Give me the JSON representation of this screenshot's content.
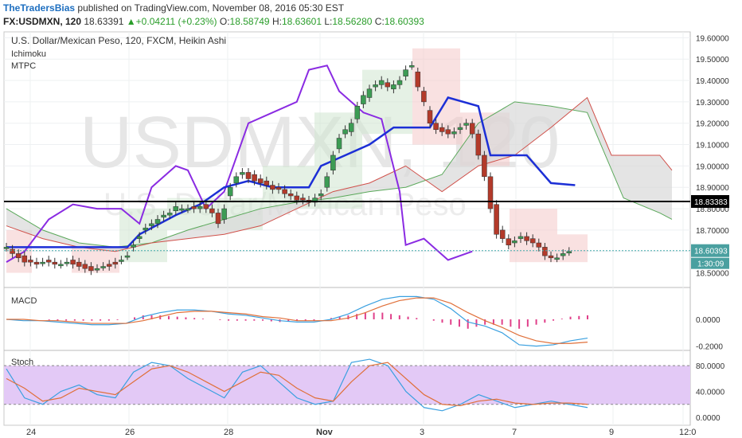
{
  "header": {
    "author": "TheTradersBias",
    "published_text": "published on TradingView.com, November 08, 2016 05:30 EST",
    "symbol": "FX:USDMXN, 120",
    "last": "18.63391",
    "change_arrow": "▲",
    "change": "+0.04211 (+0.23%)",
    "open_label": "O:",
    "open": "18.58749",
    "high_label": "H:",
    "high": "18.63601",
    "low_label": "L:",
    "low": "18.56280",
    "close_label": "C:",
    "close": "18.60393"
  },
  "legend": {
    "title": "U.S. Dollar/Mexican Peso, 120, FXCM, Heikin Ashi",
    "ind1": "Ichimoku",
    "ind2": "MTPC"
  },
  "watermark": {
    "big": "USDMXN, 120",
    "small": "U.S. Dollar/Mexican Peso"
  },
  "colors": {
    "up": "#3c9c54",
    "down": "#b33a2a",
    "cloud_green": "#5aa85a",
    "cloud_red": "#d0504a",
    "blue": "#1c2fd6",
    "purple": "#8a2be2",
    "macd": "#3aa0e0",
    "signal": "#e0703a",
    "hist": "#e0408a",
    "stoch_bg": "#e3c9f6"
  },
  "chart_data": [
    {
      "type": "candlestick",
      "title": "U.S. Dollar/Mexican Peso, 120, FXCM, Heikin Ashi",
      "x_ticks": [
        "24",
        "26",
        "28",
        "Nov",
        "3",
        "7",
        "9",
        "12:0"
      ],
      "ylim": [
        18.45,
        19.62
      ],
      "y_ticks": [
        "19.60000",
        "19.50000",
        "19.40000",
        "19.30000",
        "19.20000",
        "19.10000",
        "19.00000",
        "18.90000",
        "18.80000",
        "18.70000",
        "18.50000"
      ],
      "level_line": {
        "value": 18.83383,
        "label": "18.83383"
      },
      "last_price": {
        "value": 18.60393,
        "label": "18.60393"
      },
      "countdown": "1:30:09",
      "candles": [
        [
          18.62,
          18.62
        ],
        [
          18.61,
          18.59
        ],
        [
          18.59,
          18.57
        ],
        [
          18.58,
          18.55
        ],
        [
          18.56,
          18.55
        ],
        [
          18.55,
          18.54
        ],
        [
          18.55,
          18.55
        ],
        [
          18.56,
          18.55
        ],
        [
          18.55,
          18.54
        ],
        [
          18.54,
          18.54
        ],
        [
          18.55,
          18.55
        ],
        [
          18.56,
          18.54
        ],
        [
          18.55,
          18.53
        ],
        [
          18.54,
          18.52
        ],
        [
          18.53,
          18.51
        ],
        [
          18.52,
          18.52
        ],
        [
          18.53,
          18.53
        ],
        [
          18.54,
          18.53
        ],
        [
          18.55,
          18.54
        ],
        [
          18.56,
          18.56
        ],
        [
          18.58,
          18.58
        ],
        [
          18.62,
          18.63
        ],
        [
          18.66,
          18.67
        ],
        [
          18.7,
          18.71
        ],
        [
          18.72,
          18.73
        ],
        [
          18.73,
          18.75
        ],
        [
          18.76,
          18.77
        ],
        [
          18.77,
          18.78
        ],
        [
          18.79,
          18.81
        ],
        [
          18.8,
          18.8
        ],
        [
          18.8,
          18.8
        ],
        [
          18.81,
          18.8
        ],
        [
          18.8,
          18.81
        ],
        [
          18.82,
          18.8
        ],
        [
          18.8,
          18.78
        ],
        [
          18.78,
          18.73
        ],
        [
          18.75,
          18.8
        ],
        [
          18.86,
          18.9
        ],
        [
          18.92,
          18.95
        ],
        [
          18.96,
          18.97
        ],
        [
          18.97,
          18.94
        ],
        [
          18.96,
          18.93
        ],
        [
          18.94,
          18.92
        ],
        [
          18.93,
          18.91
        ],
        [
          18.91,
          18.89
        ],
        [
          18.9,
          18.89
        ],
        [
          18.89,
          18.87
        ],
        [
          18.87,
          18.86
        ],
        [
          18.86,
          18.84
        ],
        [
          18.85,
          18.84
        ],
        [
          18.84,
          18.83
        ],
        [
          18.83,
          18.85
        ],
        [
          18.86,
          18.87
        ],
        [
          18.9,
          18.95
        ],
        [
          18.98,
          19.05
        ],
        [
          19.08,
          19.13
        ],
        [
          19.15,
          19.17
        ],
        [
          19.16,
          19.2
        ],
        [
          19.22,
          19.28
        ],
        [
          19.29,
          19.33
        ],
        [
          19.32,
          19.36
        ],
        [
          19.37,
          19.38
        ],
        [
          19.38,
          19.4
        ],
        [
          19.39,
          19.37
        ],
        [
          19.36,
          19.38
        ],
        [
          19.38,
          19.4
        ],
        [
          19.42,
          19.45
        ],
        [
          19.47,
          19.47
        ],
        [
          19.44,
          19.37
        ],
        [
          19.35,
          19.3
        ],
        [
          19.26,
          19.2
        ],
        [
          19.2,
          19.17
        ],
        [
          19.18,
          19.16
        ],
        [
          19.17,
          19.15
        ],
        [
          19.15,
          19.16
        ],
        [
          19.17,
          19.18
        ],
        [
          19.19,
          19.2
        ],
        [
          19.2,
          19.15
        ],
        [
          19.15,
          19.05
        ],
        [
          19.05,
          18.95
        ],
        [
          18.95,
          18.8
        ],
        [
          18.82,
          18.68
        ],
        [
          18.7,
          18.66
        ],
        [
          18.66,
          18.63
        ],
        [
          18.64,
          18.65
        ],
        [
          18.66,
          18.67
        ],
        [
          18.67,
          18.65
        ],
        [
          18.66,
          18.64
        ],
        [
          18.64,
          18.62
        ],
        [
          18.62,
          18.58
        ],
        [
          18.58,
          18.57
        ],
        [
          18.57,
          18.57
        ],
        [
          18.58,
          18.59
        ],
        [
          18.6,
          18.6
        ]
      ],
      "tenkan": [
        [
          0,
          18.62
        ],
        [
          20,
          18.62
        ],
        [
          22,
          18.68
        ],
        [
          28,
          18.77
        ],
        [
          32,
          18.82
        ],
        [
          36,
          18.9
        ],
        [
          40,
          18.93
        ],
        [
          44,
          18.9
        ],
        [
          48,
          18.9
        ],
        [
          50,
          18.9
        ],
        [
          52,
          19.0
        ],
        [
          56,
          19.05
        ],
        [
          60,
          19.1
        ],
        [
          64,
          19.18
        ],
        [
          70,
          19.18
        ],
        [
          73,
          19.32
        ],
        [
          78,
          19.28
        ],
        [
          80,
          19.05
        ],
        [
          86,
          19.05
        ],
        [
          90,
          18.92
        ],
        [
          94,
          18.91
        ]
      ],
      "lagging": [
        [
          0,
          18.55
        ],
        [
          3,
          18.6
        ],
        [
          7,
          18.75
        ],
        [
          11,
          18.82
        ],
        [
          15,
          18.8
        ],
        [
          19,
          18.8
        ],
        [
          22,
          18.73
        ],
        [
          24,
          18.9
        ],
        [
          28,
          19.0
        ],
        [
          30,
          18.98
        ],
        [
          33,
          18.8
        ],
        [
          36,
          18.88
        ],
        [
          40,
          19.2
        ],
        [
          44,
          19.25
        ],
        [
          48,
          19.3
        ],
        [
          50,
          19.45
        ],
        [
          53,
          19.47
        ],
        [
          55,
          19.35
        ],
        [
          59,
          19.25
        ],
        [
          62,
          19.22
        ],
        [
          65,
          18.88
        ],
        [
          66,
          18.63
        ],
        [
          69,
          18.66
        ],
        [
          73,
          18.56
        ],
        [
          77,
          18.6
        ]
      ],
      "cloud_a": [
        [
          0,
          18.8
        ],
        [
          6,
          18.7
        ],
        [
          12,
          18.64
        ],
        [
          18,
          18.62
        ],
        [
          24,
          18.64
        ],
        [
          30,
          18.7
        ],
        [
          36,
          18.75
        ],
        [
          42,
          18.8
        ],
        [
          48,
          18.83
        ],
        [
          54,
          18.85
        ],
        [
          60,
          18.88
        ],
        [
          66,
          18.9
        ],
        [
          72,
          18.96
        ],
        [
          78,
          19.2
        ],
        [
          84,
          19.3
        ],
        [
          90,
          19.28
        ],
        [
          96,
          19.25
        ],
        [
          102,
          18.85
        ],
        [
          108,
          18.78
        ],
        [
          110,
          18.75
        ]
      ],
      "cloud_b": [
        [
          0,
          18.72
        ],
        [
          6,
          18.66
        ],
        [
          12,
          18.62
        ],
        [
          18,
          18.6
        ],
        [
          24,
          18.64
        ],
        [
          30,
          18.66
        ],
        [
          36,
          18.68
        ],
        [
          42,
          18.72
        ],
        [
          48,
          18.8
        ],
        [
          54,
          18.88
        ],
        [
          60,
          18.92
        ],
        [
          66,
          19.0
        ],
        [
          72,
          18.88
        ],
        [
          78,
          19.0
        ],
        [
          84,
          19.05
        ],
        [
          90,
          19.18
        ],
        [
          96,
          19.32
        ],
        [
          100,
          19.05
        ],
        [
          108,
          19.05
        ],
        [
          110,
          18.98
        ]
      ]
    },
    {
      "type": "line",
      "title": "MACD",
      "ylim": [
        -0.22,
        0.22
      ],
      "y_ticks": [
        "0.0000",
        "-0.2000"
      ],
      "macd": [
        0.0,
        -0.01,
        -0.01,
        -0.02,
        -0.03,
        -0.04,
        -0.04,
        -0.03,
        0.02,
        0.05,
        0.07,
        0.07,
        0.06,
        0.04,
        0.03,
        0.01,
        -0.01,
        -0.02,
        -0.02,
        0.0,
        0.04,
        0.1,
        0.15,
        0.17,
        0.17,
        0.15,
        0.08,
        -0.02,
        -0.05,
        -0.1,
        -0.19,
        -0.2,
        -0.19,
        -0.16,
        -0.14
      ],
      "signal": [
        0.0,
        0.0,
        -0.01,
        -0.01,
        -0.02,
        -0.03,
        -0.03,
        -0.03,
        -0.01,
        0.02,
        0.05,
        0.06,
        0.06,
        0.05,
        0.04,
        0.02,
        0.01,
        -0.01,
        -0.01,
        -0.01,
        0.01,
        0.05,
        0.1,
        0.14,
        0.16,
        0.16,
        0.12,
        0.05,
        -0.01,
        -0.06,
        -0.12,
        -0.16,
        -0.18,
        -0.18,
        -0.17
      ],
      "hist": [
        0.0,
        0.0,
        0.0,
        -0.01,
        -0.01,
        -0.01,
        -0.01,
        0.0,
        0.03,
        0.03,
        0.02,
        0.01,
        0.0,
        -0.01,
        -0.01,
        -0.01,
        -0.02,
        -0.01,
        -0.01,
        0.01,
        0.03,
        0.05,
        0.05,
        0.03,
        0.01,
        -0.01,
        -0.04,
        -0.07,
        -0.04,
        -0.04,
        -0.07,
        -0.04,
        -0.01,
        0.02,
        0.03
      ]
    },
    {
      "type": "line",
      "title": "Stoch",
      "ylim": [
        -10,
        100
      ],
      "y_ticks": [
        "80.0000",
        "40.0000",
        "0.0000"
      ],
      "k": [
        75,
        30,
        20,
        40,
        50,
        35,
        30,
        70,
        85,
        80,
        60,
        45,
        30,
        70,
        80,
        55,
        30,
        20,
        25,
        85,
        90,
        80,
        40,
        15,
        10,
        20,
        35,
        25,
        15,
        20,
        25,
        20,
        15
      ],
      "d": [
        60,
        45,
        25,
        30,
        45,
        40,
        35,
        55,
        75,
        80,
        70,
        55,
        40,
        55,
        70,
        65,
        45,
        30,
        25,
        55,
        80,
        85,
        60,
        35,
        20,
        18,
        25,
        28,
        22,
        20,
        22,
        22,
        20
      ]
    }
  ]
}
